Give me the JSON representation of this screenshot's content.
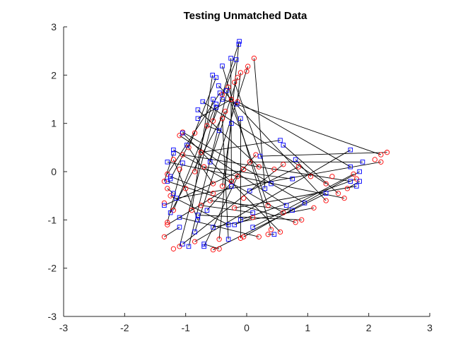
{
  "chart_data": {
    "type": "scatter",
    "title": "Testing Unmatched Data",
    "xlabel": "",
    "ylabel": "",
    "xlim": [
      -3,
      3
    ],
    "ylim": [
      -3,
      3
    ],
    "xticks": [
      -3,
      -2,
      -1,
      0,
      1,
      2,
      3
    ],
    "yticks": [
      -3,
      -2,
      -1,
      0,
      1,
      2,
      3
    ],
    "grid": false,
    "colors": {
      "squares": "#0000ff",
      "circles": "#ff0000",
      "lines": "#000000",
      "axes": "#262626"
    },
    "series": [
      {
        "marker": "square",
        "points": [
          [
            -0.12,
            2.7
          ],
          [
            -0.13,
            2.64
          ],
          [
            -0.26,
            2.35
          ],
          [
            -0.17,
            2.32
          ],
          [
            -0.4,
            2.19
          ],
          [
            -0.56,
            2.0
          ],
          [
            -0.5,
            1.95
          ],
          [
            -0.46,
            1.78
          ],
          [
            -0.33,
            1.68
          ],
          [
            -0.44,
            1.63
          ],
          [
            -0.4,
            1.5
          ],
          [
            -0.55,
            1.5
          ],
          [
            -0.5,
            1.4
          ],
          [
            -0.72,
            1.45
          ],
          [
            -0.16,
            1.4
          ],
          [
            -0.5,
            1.33
          ],
          [
            -0.8,
            1.28
          ],
          [
            -0.8,
            1.1
          ],
          [
            -0.1,
            1.1
          ],
          [
            -0.25,
            1.0
          ],
          [
            -0.45,
            0.85
          ],
          [
            -1.05,
            0.8
          ],
          [
            -0.98,
            0.55
          ],
          [
            0.55,
            0.65
          ],
          [
            0.6,
            0.55
          ],
          [
            -1.2,
            0.45
          ],
          [
            -1.2,
            0.38
          ],
          [
            0.22,
            0.32
          ],
          [
            -1.3,
            0.2
          ],
          [
            -1.05,
            0.18
          ],
          [
            0.8,
            0.25
          ],
          [
            -0.6,
            0.2
          ],
          [
            1.7,
            0.45
          ],
          [
            1.9,
            0.2
          ],
          [
            1.7,
            0.1
          ],
          [
            1.85,
            0.0
          ],
          [
            -1.25,
            -0.1
          ],
          [
            -1.25,
            -0.15
          ],
          [
            -1.3,
            -0.2
          ],
          [
            0.75,
            -0.15
          ],
          [
            1.7,
            -0.2
          ],
          [
            1.85,
            -0.2
          ],
          [
            1.8,
            -0.3
          ],
          [
            -1.2,
            -0.45
          ],
          [
            -1.15,
            -0.55
          ],
          [
            0.3,
            -0.35
          ],
          [
            -0.25,
            -0.3
          ],
          [
            0.05,
            -0.4
          ],
          [
            0.4,
            -0.25
          ],
          [
            1.3,
            -0.45
          ],
          [
            -1.35,
            -0.7
          ],
          [
            -1.25,
            -0.85
          ],
          [
            -1.1,
            -0.95
          ],
          [
            0.75,
            -0.8
          ],
          [
            0.95,
            -0.65
          ],
          [
            -0.8,
            -0.9
          ],
          [
            -0.65,
            -0.8
          ],
          [
            -0.8,
            -1.0
          ],
          [
            -0.1,
            -1.0
          ],
          [
            -0.2,
            -1.1
          ],
          [
            -0.3,
            -1.1
          ],
          [
            0.1,
            -1.15
          ],
          [
            -0.85,
            -1.25
          ],
          [
            -1.1,
            -1.15
          ],
          [
            -1.05,
            -1.5
          ],
          [
            -0.95,
            -1.55
          ],
          [
            -0.7,
            -1.5
          ],
          [
            -0.7,
            -1.55
          ],
          [
            -0.3,
            -1.4
          ],
          [
            0.45,
            -1.3
          ],
          [
            0.1,
            -0.85
          ],
          [
            0.65,
            -0.7
          ],
          [
            -0.55,
            -1.15
          ]
        ]
      },
      {
        "marker": "circle",
        "points": [
          [
            0.12,
            2.35
          ],
          [
            0.02,
            2.18
          ],
          [
            0.0,
            2.08
          ],
          [
            -0.1,
            2.05
          ],
          [
            -0.15,
            1.95
          ],
          [
            -0.2,
            1.85
          ],
          [
            -0.3,
            1.75
          ],
          [
            -0.4,
            1.6
          ],
          [
            -0.25,
            1.5
          ],
          [
            -0.15,
            1.45
          ],
          [
            -0.35,
            1.25
          ],
          [
            -0.4,
            1.1
          ],
          [
            -0.55,
            1.05
          ],
          [
            -0.65,
            0.95
          ],
          [
            -0.85,
            0.8
          ],
          [
            -1.05,
            0.82
          ],
          [
            -1.1,
            0.75
          ],
          [
            -0.95,
            0.5
          ],
          [
            -0.75,
            0.4
          ],
          [
            -1.05,
            0.35
          ],
          [
            -1.2,
            0.25
          ],
          [
            -1.1,
            0.05
          ],
          [
            -1.3,
            -0.05
          ],
          [
            -1.35,
            -0.2
          ],
          [
            -1.3,
            -0.35
          ],
          [
            -1.25,
            -0.5
          ],
          [
            -1.35,
            -0.65
          ],
          [
            -1.2,
            -0.8
          ],
          [
            -1.3,
            -1.05
          ],
          [
            -1.3,
            -1.1
          ],
          [
            -1.35,
            -1.35
          ],
          [
            -1.2,
            -1.6
          ],
          [
            -1.1,
            -1.55
          ],
          [
            -0.85,
            -1.45
          ],
          [
            -0.55,
            -1.62
          ],
          [
            -0.45,
            -1.6
          ],
          [
            -0.45,
            -1.4
          ],
          [
            -0.1,
            -1.38
          ],
          [
            -0.05,
            -1.35
          ],
          [
            0.2,
            -1.35
          ],
          [
            0.35,
            -1.3
          ],
          [
            0.4,
            -1.2
          ],
          [
            0.55,
            -1.25
          ],
          [
            0.8,
            -1.05
          ],
          [
            0.9,
            -1.0
          ],
          [
            1.1,
            -0.75
          ],
          [
            1.3,
            -0.6
          ],
          [
            1.5,
            -0.45
          ],
          [
            1.65,
            -0.35
          ],
          [
            1.8,
            -0.15
          ],
          [
            2.1,
            0.25
          ],
          [
            2.2,
            0.35
          ],
          [
            2.3,
            0.4
          ],
          [
            2.2,
            0.2
          ],
          [
            1.75,
            -0.05
          ],
          [
            1.4,
            -0.1
          ],
          [
            1.3,
            -0.25
          ],
          [
            1.05,
            -0.1
          ],
          [
            0.85,
            0.1
          ],
          [
            0.6,
            0.15
          ],
          [
            0.45,
            0.05
          ],
          [
            0.2,
            0.1
          ],
          [
            0.05,
            0.2
          ],
          [
            -0.05,
            0.05
          ],
          [
            -0.15,
            -0.1
          ],
          [
            -0.25,
            -0.2
          ],
          [
            -0.4,
            -0.3
          ],
          [
            -0.55,
            -0.45
          ],
          [
            -0.6,
            -0.6
          ],
          [
            -0.75,
            -0.7
          ],
          [
            -0.9,
            -0.8
          ],
          [
            -0.55,
            -0.25
          ],
          [
            -0.7,
            0.1
          ],
          [
            0.15,
            0.35
          ],
          [
            -0.05,
            -0.55
          ],
          [
            0.35,
            -0.7
          ],
          [
            0.6,
            -0.85
          ],
          [
            -0.2,
            -0.75
          ],
          [
            0.1,
            -0.95
          ],
          [
            -1.0,
            -0.35
          ],
          [
            -0.85,
            0.0
          ],
          [
            1.6,
            -0.55
          ]
        ]
      }
    ]
  }
}
